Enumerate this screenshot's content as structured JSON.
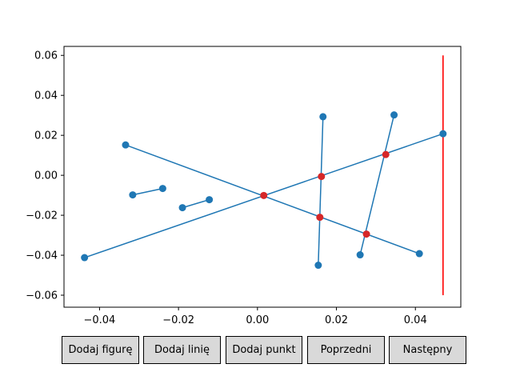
{
  "window": {
    "width": 640,
    "height": 480
  },
  "chart_data": {
    "type": "line",
    "title": "",
    "xlabel": "",
    "ylabel": "",
    "xlim": [
      -0.049,
      0.0515
    ],
    "ylim": [
      -0.066,
      0.0645
    ],
    "grid": false,
    "x_ticks": [
      -0.04,
      -0.02,
      0.0,
      0.02,
      0.04
    ],
    "x_tick_labels": [
      "−0.04",
      "−0.02",
      "0.00",
      "0.02",
      "0.04"
    ],
    "y_ticks": [
      0.06,
      0.04,
      0.02,
      0.0,
      -0.02,
      -0.04,
      -0.06
    ],
    "y_tick_labels": [
      "0.06",
      "0.04",
      "0.02",
      "0.00",
      "−0.02",
      "−0.04",
      "−0.06"
    ],
    "line_color": "#1f77b4",
    "intersection_color": "#d62728",
    "sweep_line_color": "#ff0000",
    "segments": [
      {
        "p1": [
          -0.0438,
          -0.0412
        ],
        "p2": [
          0.047,
          0.0208
        ]
      },
      {
        "p1": [
          -0.0334,
          0.0152
        ],
        "p2": [
          0.041,
          -0.0392
        ]
      },
      {
        "p1": [
          -0.0316,
          -0.0098
        ],
        "p2": [
          -0.024,
          -0.0066
        ]
      },
      {
        "p1": [
          -0.019,
          -0.0162
        ],
        "p2": [
          -0.0122,
          -0.0122
        ]
      },
      {
        "p1": [
          0.0154,
          -0.045
        ],
        "p2": [
          0.0166,
          0.0293
        ]
      },
      {
        "p1": [
          0.026,
          -0.0398
        ],
        "p2": [
          0.0346,
          0.0302
        ]
      }
    ],
    "intersections": [
      [
        0.0016,
        -0.0101
      ],
      [
        0.0162,
        -0.0006
      ],
      [
        0.0158,
        -0.021
      ],
      [
        0.0325,
        0.0104
      ],
      [
        0.0276,
        -0.0294
      ]
    ],
    "sweep_line": {
      "x": 0.047,
      "y_from": -0.06,
      "y_to": 0.06
    }
  },
  "buttons": [
    {
      "label": "Dodaj figurę"
    },
    {
      "label": "Dodaj linię"
    },
    {
      "label": "Dodaj punkt"
    },
    {
      "label": "Poprzedni"
    },
    {
      "label": "Następny"
    }
  ]
}
